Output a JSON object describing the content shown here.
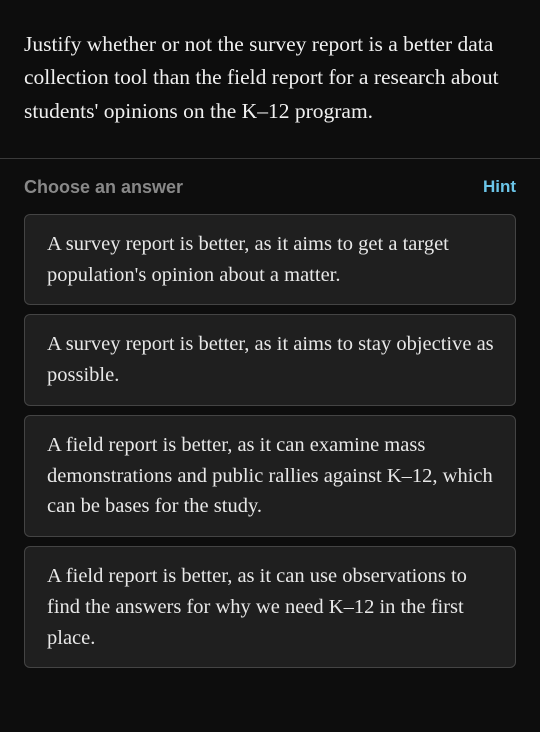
{
  "question": {
    "text": "Justify whether or not the survey report is a better data collection tool than the field report for a research about students' opinions on the K–12 program.",
    "font_size": 21.5,
    "color": "#f0f0f0",
    "line_height": 1.55
  },
  "answer_header": {
    "choose_label": "Choose an answer",
    "hint_label": "Hint",
    "choose_color": "#888888",
    "hint_color": "#6bc5e8",
    "font_size": 18
  },
  "answer_options": [
    "A survey report is better, as it aims to get a target population's opinion about a matter.",
    "A survey report is better, as it aims to stay objective as possible.",
    "A field report is better, as it can examine mass demonstrations and public rallies against K–12, which can be bases for the study.",
    "A field report is better, as it can use observations to find the answers for why we need K–12 in the first place."
  ],
  "option_style": {
    "background_color": "#1f1f1f",
    "border_color": "#444444",
    "border_radius": 6,
    "text_color": "#e8e8e8",
    "font_size": 20.5,
    "line_height": 1.5,
    "padding": "14px 18px 14px 22px"
  },
  "divider": {
    "color": "#3a3a3a"
  },
  "page_background": "#0d0d0d"
}
